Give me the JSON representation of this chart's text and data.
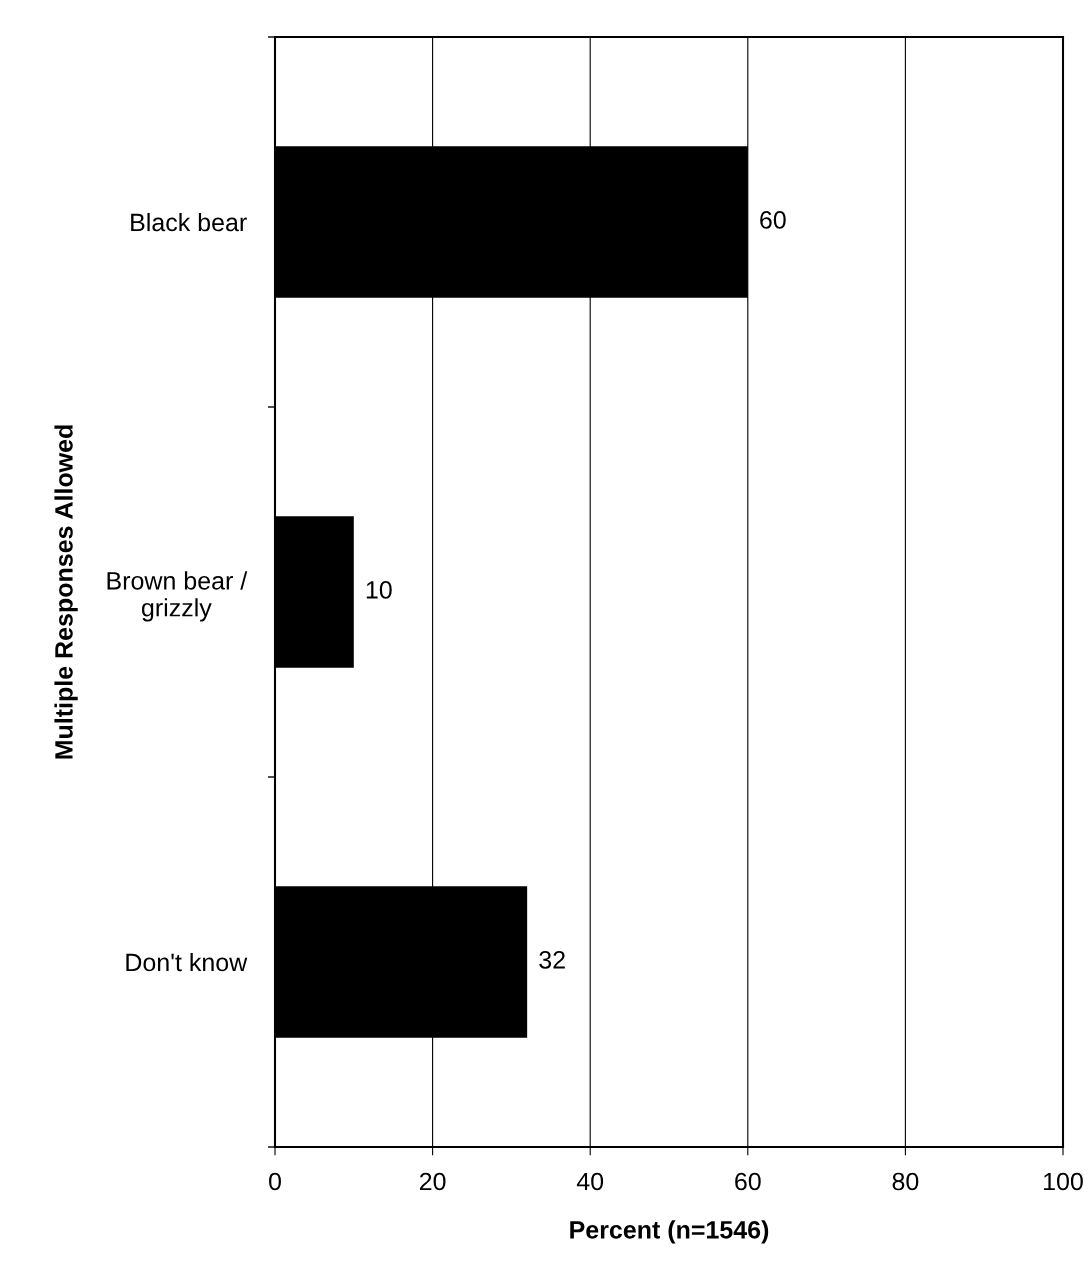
{
  "chart_data": {
    "type": "bar",
    "orientation": "horizontal",
    "xlabel": "Percent (n=1546)",
    "ylabel": "Multiple Responses Allowed",
    "categories": [
      "Black bear",
      "Brown bear /\ngrizzly",
      "Don't know"
    ],
    "values": [
      60,
      10,
      32
    ],
    "color": "#000000",
    "xlim": [
      0,
      100
    ],
    "xticks": [
      0,
      20,
      40,
      60,
      80,
      100
    ],
    "grid": "x",
    "data_labels": true
  }
}
